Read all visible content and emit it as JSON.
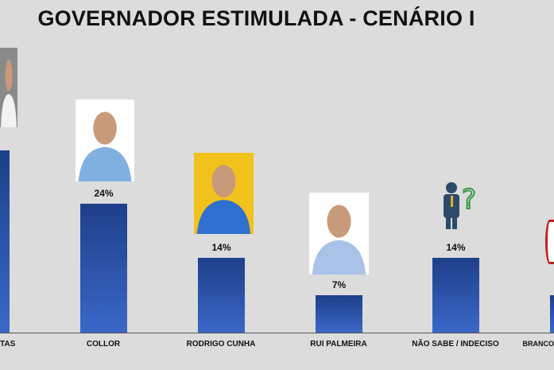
{
  "chart_data": {
    "type": "bar",
    "title": "GOVERNADOR ESTIMULADA - CENÁRIO I",
    "categories": [
      "TAS",
      "COLLOR",
      "RODRIGO CUNHA",
      "RUI PALMEIRA",
      "NÃO SABE / INDECISO",
      "BRANCO"
    ],
    "values": [
      34,
      24,
      14,
      7,
      14,
      7
    ],
    "value_labels": [
      "",
      "24%",
      "14%",
      "7%",
      "14%",
      ""
    ],
    "ylim": [
      0,
      40
    ],
    "xlabel": "",
    "ylabel": "",
    "grid": false,
    "bar_color": "#2d55ad"
  }
}
